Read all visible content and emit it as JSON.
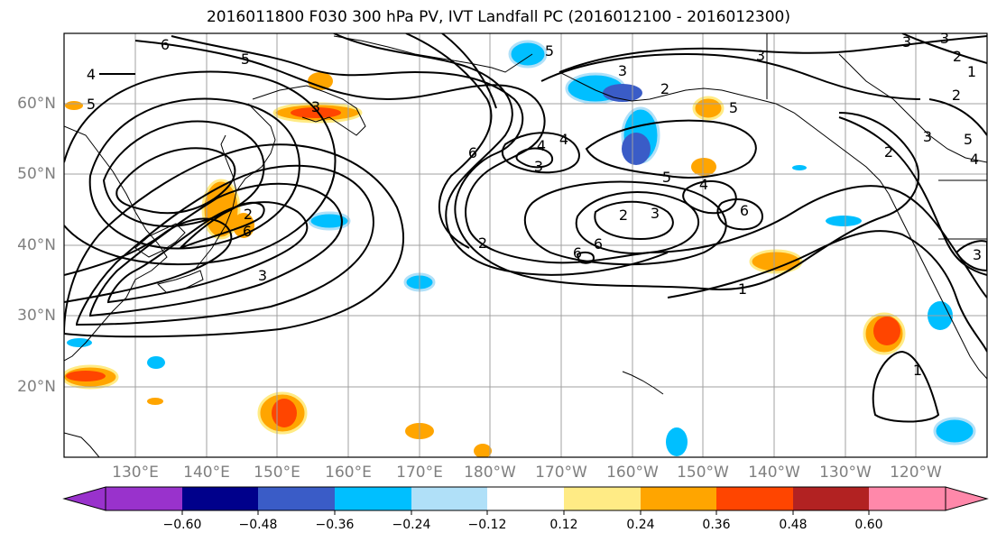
{
  "title": "2016011800 F030 300 hPa PV, IVT Landfall PC (2016012100 - 2016012300)",
  "lat_labels": [
    "60°N",
    "50°N",
    "40°N",
    "30°N",
    "20°N"
  ],
  "lon_labels": [
    "130°E",
    "140°E",
    "150°E",
    "160°E",
    "170°E",
    "180°W",
    "170°W",
    "160°W",
    "150°W",
    "140°W",
    "130°W",
    "120°W"
  ],
  "colorbar": {
    "colors": [
      "#9932cc",
      "#00008b",
      "#3a5cc7",
      "#00bfff",
      "#b0e0f8",
      "#ffffff",
      "#ffeb85",
      "#ffa500",
      "#ff4500",
      "#b22222",
      "#ff88aa"
    ],
    "ticks": [
      "−0.60",
      "−0.48",
      "−0.36",
      "−0.24",
      "−0.12",
      "0.12",
      "0.24",
      "0.36",
      "0.48",
      "0.60"
    ]
  },
  "contour_labels": [
    "6",
    "5",
    "4",
    "5",
    "3",
    "3",
    "6",
    "2",
    "6",
    "3",
    "5",
    "4",
    "4",
    "3",
    "2",
    "2",
    "3",
    "2",
    "1",
    "6",
    "5",
    "4",
    "2",
    "3",
    "6",
    "6",
    "3",
    "1",
    "1",
    "3",
    "2",
    "3",
    "2",
    "5",
    "4",
    "5",
    "3"
  ]
}
